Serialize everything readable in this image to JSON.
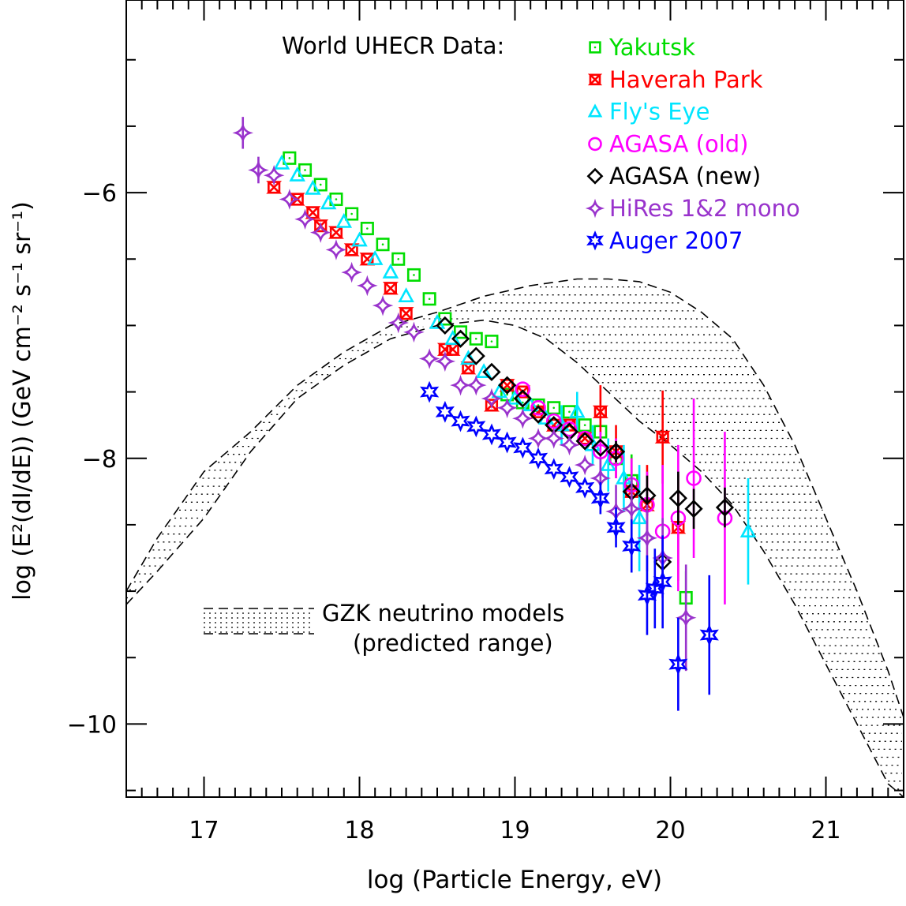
{
  "chart_data": {
    "type": "scatter",
    "title": "",
    "xlabel": "log (Particle Energy, eV)",
    "ylabel": "log (E²(dI/dE)) (GeV cm⁻² s⁻¹ sr⁻¹)",
    "xlim": [
      16.5,
      21.5
    ],
    "ylim": [
      -10.55,
      -4.55
    ],
    "x_ticks": [
      17,
      18,
      19,
      20,
      21
    ],
    "x_tick_labels": [
      "17",
      "18",
      "19",
      "20",
      "21"
    ],
    "y_ticks": [
      -6,
      -8,
      -10
    ],
    "y_tick_labels": [
      "−6",
      "−8",
      "−10"
    ],
    "legend_title": "World UHECR Data:",
    "series": [
      {
        "name": "Yakutsk",
        "color": "#00dd00",
        "marker": "square-dot",
        "x": [
          17.55,
          17.65,
          17.75,
          17.85,
          17.95,
          18.05,
          18.15,
          18.25,
          18.35,
          18.45,
          18.55,
          18.65,
          18.75,
          18.85,
          18.95,
          19.05,
          19.15,
          19.25,
          19.35,
          19.45,
          19.55,
          19.65,
          19.75,
          20.1
        ],
        "y": [
          -5.74,
          -5.83,
          -5.94,
          -6.05,
          -6.16,
          -6.27,
          -6.39,
          -6.5,
          -6.62,
          -6.8,
          -6.95,
          -7.05,
          -7.1,
          -7.12,
          -7.52,
          -7.58,
          -7.6,
          -7.62,
          -7.65,
          -7.75,
          -7.8,
          -8.0,
          -8.17,
          -9.05
        ],
        "err": [
          0,
          0,
          0,
          0,
          0,
          0,
          0,
          0,
          0,
          0,
          0,
          0,
          0,
          0,
          0,
          0,
          0,
          0,
          0,
          0,
          0,
          0,
          0.2,
          0.2
        ]
      },
      {
        "name": "Haverah Park",
        "color": "#ff0000",
        "marker": "hourglass",
        "x": [
          17.45,
          17.6,
          17.7,
          17.75,
          17.85,
          17.95,
          18.05,
          18.2,
          18.3,
          18.55,
          18.6,
          18.7,
          18.85,
          18.95,
          19.05,
          19.15,
          19.25,
          19.35,
          19.45,
          19.55,
          19.65,
          19.75,
          19.85,
          19.95,
          20.05
        ],
        "y": [
          -5.96,
          -6.05,
          -6.15,
          -6.25,
          -6.3,
          -6.43,
          -6.5,
          -6.72,
          -6.91,
          -7.18,
          -7.18,
          -7.32,
          -7.6,
          -7.45,
          -7.5,
          -7.65,
          -7.75,
          -7.75,
          -7.85,
          -7.65,
          -7.95,
          -8.25,
          -8.35,
          -7.84,
          -8.52
        ],
        "err": [
          0,
          0,
          0,
          0,
          0,
          0,
          0,
          0,
          0,
          0,
          0,
          0,
          0,
          0,
          0,
          0,
          0,
          0,
          0,
          0.2,
          0.2,
          0.25,
          0.3,
          0.35,
          0.4
        ]
      },
      {
        "name": "Fly's Eye",
        "color": "#00e5ff",
        "marker": "triangle",
        "x": [
          17.5,
          17.6,
          17.7,
          17.8,
          17.9,
          18.0,
          18.1,
          18.2,
          18.3,
          18.5,
          18.6,
          18.7,
          18.8,
          18.9,
          19.0,
          19.1,
          19.2,
          19.3,
          19.4,
          19.5,
          19.6,
          19.7,
          19.8,
          20.5
        ],
        "y": [
          -5.78,
          -5.87,
          -5.97,
          -6.08,
          -6.22,
          -6.36,
          -6.5,
          -6.6,
          -6.78,
          -6.98,
          -7.1,
          -7.25,
          -7.35,
          -7.5,
          -7.55,
          -7.6,
          -7.7,
          -7.75,
          -7.65,
          -7.9,
          -8.05,
          -8.15,
          -8.45,
          -8.55
        ],
        "err": [
          0,
          0,
          0,
          0,
          0,
          0,
          0,
          0,
          0,
          0,
          0,
          0,
          0,
          0,
          0,
          0,
          0,
          0.15,
          0.15,
          0.15,
          0.2,
          0.25,
          0.4,
          0.4
        ]
      },
      {
        "name": "AGASA (old)",
        "color": "#ff00ff",
        "marker": "circle",
        "x": [
          19.05,
          19.15,
          19.25,
          19.35,
          19.45,
          19.55,
          19.65,
          19.75,
          19.85,
          19.95,
          20.05,
          20.15,
          20.35
        ],
        "y": [
          -7.48,
          -7.62,
          -7.72,
          -7.78,
          -7.85,
          -7.95,
          -8.0,
          -8.2,
          -8.35,
          -8.55,
          -8.45,
          -8.15,
          -8.45
        ],
        "err": [
          0,
          0,
          0,
          0,
          0,
          0.15,
          0.15,
          0.2,
          0.25,
          0.5,
          0.55,
          0.6,
          0.65
        ]
      },
      {
        "name": "AGASA (new)",
        "color": "#000000",
        "marker": "diamond",
        "x": [
          18.55,
          18.65,
          18.75,
          18.85,
          18.95,
          19.05,
          19.15,
          19.25,
          19.35,
          19.45,
          19.55,
          19.65,
          19.75,
          19.85,
          19.95,
          20.05,
          20.15,
          20.35
        ],
        "y": [
          -7.0,
          -7.1,
          -7.23,
          -7.35,
          -7.45,
          -7.55,
          -7.67,
          -7.75,
          -7.8,
          -7.87,
          -7.92,
          -7.95,
          -8.25,
          -8.28,
          -8.78,
          -8.3,
          -8.38,
          -8.37
        ],
        "err": [
          0,
          0,
          0,
          0,
          0,
          0,
          0,
          0,
          0,
          0,
          0,
          0.08,
          0.1,
          0.15,
          0.2,
          0.2,
          0.15,
          0.15
        ]
      },
      {
        "name": "HiRes 1&2 mono",
        "color": "#9933cc",
        "marker": "astroid",
        "x": [
          17.25,
          17.35,
          17.45,
          17.55,
          17.65,
          17.75,
          17.85,
          17.95,
          18.05,
          18.15,
          18.25,
          18.35,
          18.45,
          18.55,
          18.65,
          18.75,
          18.85,
          18.95,
          19.05,
          19.15,
          19.25,
          19.35,
          19.45,
          19.55,
          19.65,
          19.75,
          19.85,
          19.95,
          20.1
        ],
        "y": [
          -5.55,
          -5.83,
          -5.87,
          -6.05,
          -6.2,
          -6.3,
          -6.43,
          -6.6,
          -6.7,
          -6.85,
          -6.98,
          -7.05,
          -7.25,
          -7.27,
          -7.45,
          -7.45,
          -7.55,
          -7.62,
          -7.7,
          -7.85,
          -7.85,
          -7.9,
          -8.05,
          -8.15,
          -8.4,
          -8.38,
          -8.6,
          -8.75,
          -9.2
        ],
        "err": [
          0.12,
          0.1,
          0,
          0,
          0,
          0,
          0,
          0,
          0,
          0,
          0,
          0,
          0,
          0,
          0,
          0,
          0,
          0,
          0,
          0,
          0,
          0,
          0,
          0.15,
          0.2,
          0.25,
          0.25,
          0.3,
          0.4
        ]
      },
      {
        "name": "Auger 2007",
        "color": "#0000ff",
        "marker": "star",
        "x": [
          18.45,
          18.55,
          18.65,
          18.75,
          18.85,
          18.95,
          19.05,
          19.15,
          19.25,
          19.35,
          19.45,
          19.55,
          19.65,
          19.75,
          19.85,
          19.9,
          19.95,
          20.05,
          20.25
        ],
        "y": [
          -7.5,
          -7.65,
          -7.72,
          -7.76,
          -7.82,
          -7.88,
          -7.92,
          -8.0,
          -8.08,
          -8.14,
          -8.22,
          -8.3,
          -8.52,
          -8.66,
          -9.03,
          -8.98,
          -8.93,
          -9.55,
          -9.33
        ],
        "err": [
          0,
          0,
          0,
          0,
          0,
          0,
          0,
          0,
          0,
          0,
          0,
          0.12,
          0.15,
          0.2,
          0.3,
          0.3,
          0.35,
          0.35,
          0.45
        ]
      }
    ],
    "gzk_band": {
      "label_line1": "GZK neutrino models",
      "label_line2": "(predicted range)",
      "upper_x": [
        16.5,
        16.7,
        17.0,
        17.3,
        17.6,
        17.9,
        18.2,
        18.5,
        18.8,
        19.1,
        19.4,
        19.6,
        19.8,
        20.0,
        20.2,
        20.4,
        20.6,
        20.8,
        21.0,
        21.2,
        21.4,
        21.5
      ],
      "upper_y": [
        -9.0,
        -8.6,
        -8.1,
        -7.8,
        -7.45,
        -7.2,
        -7.0,
        -6.9,
        -6.78,
        -6.7,
        -6.65,
        -6.65,
        -6.67,
        -6.75,
        -6.9,
        -7.1,
        -7.45,
        -7.9,
        -8.45,
        -9.0,
        -9.6,
        -9.95
      ],
      "lower_x": [
        16.5,
        16.7,
        17.0,
        17.3,
        17.6,
        17.9,
        18.2,
        18.5,
        18.8,
        19.0,
        19.2,
        19.4,
        19.6,
        19.8,
        20.0,
        20.2,
        20.4,
        20.6,
        20.8,
        21.0,
        21.2,
        21.4,
        21.5
      ],
      "lower_y": [
        -9.1,
        -8.85,
        -8.45,
        -7.95,
        -7.55,
        -7.3,
        -7.1,
        -7.0,
        -6.96,
        -7.0,
        -7.1,
        -7.28,
        -7.5,
        -7.72,
        -7.9,
        -8.1,
        -8.35,
        -8.7,
        -9.1,
        -9.55,
        -10.0,
        -10.45,
        -10.55
      ]
    }
  }
}
